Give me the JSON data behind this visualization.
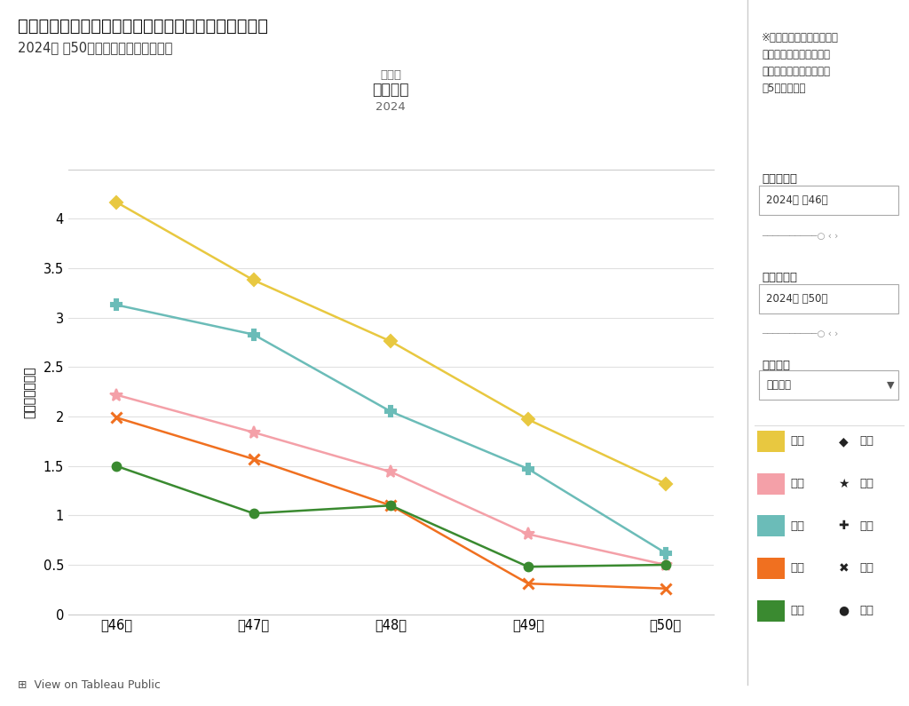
{
  "title_main": "定点把握の対象となる５類感染症（週報対象のもの）",
  "title_sub": "2024年 第50週までのデータに基づく",
  "chart_subtitle1": "小児科",
  "chart_subtitle2": "手足口病",
  "chart_subtitle3": "2024",
  "ylabel": "定点当り患者数",
  "x_labels": [
    "第46週",
    "第47週",
    "第48週",
    "第49週",
    "第50週"
  ],
  "ylim": [
    0,
    4.5
  ],
  "yticks": [
    0,
    0.5,
    1.0,
    1.5,
    2.0,
    2.5,
    3.0,
    3.5,
    4.0
  ],
  "series": [
    {
      "name": "全国",
      "values": [
        4.17,
        3.38,
        2.76,
        1.97,
        1.32
      ],
      "color": "#E8C840",
      "marker": "D",
      "markersize": 7
    },
    {
      "name": "全県",
      "values": [
        2.22,
        1.84,
        1.44,
        0.81,
        0.5
      ],
      "color": "#F4A0A8",
      "marker": "*",
      "markersize": 10
    },
    {
      "name": "東部",
      "values": [
        3.13,
        2.83,
        2.05,
        1.47,
        0.62
      ],
      "color": "#6BBCB8",
      "marker": "P",
      "markersize": 8
    },
    {
      "name": "中部",
      "values": [
        1.99,
        1.57,
        1.1,
        0.31,
        0.26
      ],
      "color": "#F07020",
      "marker": "x",
      "markersize": 9
    },
    {
      "name": "西部",
      "values": [
        1.5,
        1.02,
        1.1,
        0.48,
        0.5
      ],
      "color": "#3A8A30",
      "marker": "o",
      "markersize": 7
    }
  ],
  "sidebar_note": "※表示したい年週の期間を\n以下のスライダーで選択\nできます（初期表示は直\n近5週間です）",
  "sidebar_start_label": "開始週選択",
  "sidebar_start_value": "2024年 第46週",
  "sidebar_end_label": "終了週選択",
  "sidebar_end_value": "2024年 第50週",
  "sidebar_disease_label": "感染症名",
  "sidebar_disease_value": "手足口病",
  "legend_names": [
    "全国",
    "全県",
    "東部",
    "中部",
    "西部"
  ],
  "legend_colors": [
    "#E8C840",
    "#F4A0A8",
    "#6BBCB8",
    "#F07020",
    "#3A8A30"
  ],
  "background_color": "#ffffff",
  "grid_color": "#e0e0e0",
  "bottom_text": "View on Tableau Public"
}
